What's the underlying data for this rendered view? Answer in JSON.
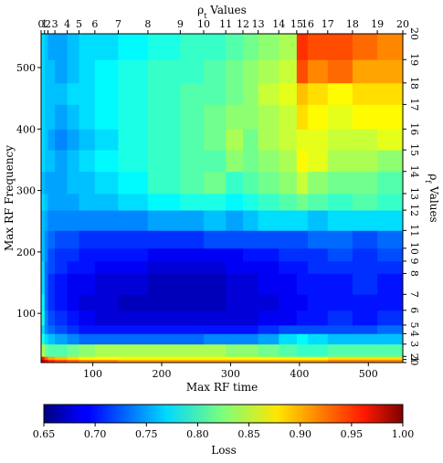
{
  "chart_data": {
    "type": "heatmap",
    "xlabel": "Max RF time",
    "ylabel": "Max RF Frequency",
    "top_label": "ρ_t Values",
    "right_label": "ρ_f Values",
    "colorbar_label": "Loss",
    "xlim": [
      25,
      550
    ],
    "ylim": [
      20,
      555
    ],
    "x_ticks": [
      100,
      200,
      300,
      400,
      500
    ],
    "y_ticks": [
      100,
      200,
      300,
      400,
      500
    ],
    "top_ticks": [
      0,
      1,
      2,
      3,
      4,
      5,
      6,
      7,
      8,
      9,
      10,
      11,
      12,
      13,
      14,
      15,
      16,
      17,
      18,
      19,
      20
    ],
    "top_tick_x": [
      25,
      30,
      35,
      45,
      63,
      80,
      103,
      137,
      180,
      227,
      261,
      293,
      318,
      340,
      370,
      396,
      412,
      441,
      477,
      513,
      550
    ],
    "right_ticks": [
      0,
      1,
      2,
      3,
      4,
      5,
      6,
      7,
      8,
      9,
      10,
      11,
      12,
      13,
      14,
      15,
      16,
      17,
      18,
      19,
      20
    ],
    "right_tick_y": [
      20,
      25,
      30,
      50,
      67,
      81,
      105,
      131,
      165,
      185,
      206,
      235,
      268,
      295,
      331,
      366,
      400,
      440,
      475,
      513,
      555
    ],
    "colorbar_range": [
      0.65,
      1.0
    ],
    "colorbar_ticks": [
      "0.65",
      "0.70",
      "0.75",
      "0.80",
      "0.85",
      "0.90",
      "0.95",
      "1.00"
    ],
    "x_edges": [
      25,
      30,
      35,
      45,
      63,
      80,
      103,
      137,
      180,
      227,
      261,
      293,
      318,
      340,
      370,
      396,
      412,
      441,
      477,
      513,
      550
    ],
    "y_edges": [
      20,
      25,
      30,
      50,
      67,
      81,
      105,
      131,
      165,
      185,
      206,
      235,
      268,
      295,
      331,
      366,
      400,
      440,
      475,
      513,
      555
    ],
    "values": [
      [
        0.98,
        0.96,
        0.94,
        0.93,
        0.92,
        0.91,
        0.91,
        0.9,
        0.9,
        0.9,
        0.9,
        0.9,
        0.9,
        0.9,
        0.9,
        0.9,
        0.9,
        0.91,
        0.91,
        0.91
      ],
      [
        0.95,
        0.92,
        0.9,
        0.89,
        0.88,
        0.87,
        0.87,
        0.87,
        0.87,
        0.87,
        0.87,
        0.87,
        0.87,
        0.87,
        0.87,
        0.87,
        0.87,
        0.88,
        0.88,
        0.88
      ],
      [
        0.84,
        0.82,
        0.81,
        0.81,
        0.82,
        0.83,
        0.84,
        0.84,
        0.84,
        0.84,
        0.84,
        0.83,
        0.83,
        0.82,
        0.81,
        0.8,
        0.8,
        0.81,
        0.81,
        0.81
      ],
      [
        0.79,
        0.77,
        0.76,
        0.75,
        0.74,
        0.73,
        0.73,
        0.73,
        0.73,
        0.73,
        0.74,
        0.74,
        0.74,
        0.75,
        0.77,
        0.78,
        0.77,
        0.76,
        0.76,
        0.76
      ],
      [
        0.77,
        0.74,
        0.73,
        0.72,
        0.71,
        0.7,
        0.7,
        0.7,
        0.7,
        0.7,
        0.7,
        0.7,
        0.7,
        0.71,
        0.72,
        0.72,
        0.72,
        0.72,
        0.72,
        0.73
      ],
      [
        0.79,
        0.74,
        0.72,
        0.71,
        0.7,
        0.69,
        0.68,
        0.68,
        0.68,
        0.68,
        0.68,
        0.68,
        0.68,
        0.69,
        0.69,
        0.7,
        0.7,
        0.71,
        0.7,
        0.71
      ],
      [
        0.78,
        0.73,
        0.71,
        0.7,
        0.69,
        0.68,
        0.68,
        0.67,
        0.67,
        0.67,
        0.67,
        0.68,
        0.68,
        0.68,
        0.69,
        0.69,
        0.7,
        0.7,
        0.7,
        0.7
      ],
      [
        0.77,
        0.73,
        0.71,
        0.7,
        0.69,
        0.69,
        0.68,
        0.68,
        0.67,
        0.67,
        0.67,
        0.68,
        0.68,
        0.69,
        0.69,
        0.7,
        0.7,
        0.7,
        0.71,
        0.7
      ],
      [
        0.77,
        0.73,
        0.72,
        0.71,
        0.7,
        0.7,
        0.69,
        0.69,
        0.68,
        0.68,
        0.68,
        0.69,
        0.69,
        0.69,
        0.7,
        0.7,
        0.71,
        0.71,
        0.71,
        0.71
      ],
      [
        0.76,
        0.74,
        0.72,
        0.71,
        0.71,
        0.7,
        0.7,
        0.7,
        0.69,
        0.69,
        0.69,
        0.69,
        0.7,
        0.7,
        0.71,
        0.71,
        0.71,
        0.72,
        0.71,
        0.72
      ],
      [
        0.76,
        0.74,
        0.73,
        0.72,
        0.72,
        0.71,
        0.71,
        0.71,
        0.71,
        0.71,
        0.72,
        0.72,
        0.72,
        0.72,
        0.72,
        0.72,
        0.73,
        0.73,
        0.72,
        0.73
      ],
      [
        0.76,
        0.75,
        0.74,
        0.74,
        0.74,
        0.74,
        0.74,
        0.74,
        0.75,
        0.75,
        0.76,
        0.75,
        0.76,
        0.77,
        0.77,
        0.77,
        0.76,
        0.77,
        0.77,
        0.77
      ],
      [
        0.77,
        0.76,
        0.75,
        0.75,
        0.75,
        0.76,
        0.76,
        0.77,
        0.78,
        0.79,
        0.79,
        0.78,
        0.79,
        0.8,
        0.81,
        0.82,
        0.81,
        0.8,
        0.81,
        0.8
      ],
      [
        0.76,
        0.75,
        0.75,
        0.75,
        0.76,
        0.76,
        0.77,
        0.78,
        0.8,
        0.81,
        0.82,
        0.8,
        0.81,
        0.82,
        0.83,
        0.85,
        0.83,
        0.82,
        0.82,
        0.81
      ],
      [
        0.77,
        0.76,
        0.76,
        0.75,
        0.76,
        0.77,
        0.78,
        0.79,
        0.8,
        0.81,
        0.81,
        0.83,
        0.82,
        0.83,
        0.84,
        0.87,
        0.86,
        0.84,
        0.84,
        0.83
      ],
      [
        0.77,
        0.76,
        0.75,
        0.74,
        0.75,
        0.76,
        0.77,
        0.79,
        0.8,
        0.81,
        0.82,
        0.84,
        0.82,
        0.84,
        0.85,
        0.86,
        0.86,
        0.85,
        0.85,
        0.86
      ],
      [
        0.77,
        0.76,
        0.76,
        0.75,
        0.76,
        0.77,
        0.78,
        0.79,
        0.8,
        0.81,
        0.82,
        0.83,
        0.83,
        0.84,
        0.85,
        0.88,
        0.87,
        0.86,
        0.87,
        0.87
      ],
      [
        0.77,
        0.76,
        0.76,
        0.76,
        0.77,
        0.77,
        0.78,
        0.79,
        0.8,
        0.81,
        0.81,
        0.82,
        0.83,
        0.85,
        0.86,
        0.89,
        0.88,
        0.87,
        0.88,
        0.88
      ],
      [
        0.77,
        0.76,
        0.76,
        0.75,
        0.76,
        0.77,
        0.78,
        0.79,
        0.8,
        0.8,
        0.81,
        0.82,
        0.83,
        0.84,
        0.85,
        0.93,
        0.91,
        0.92,
        0.9,
        0.9
      ],
      [
        0.77,
        0.76,
        0.75,
        0.75,
        0.76,
        0.77,
        0.77,
        0.78,
        0.79,
        0.8,
        0.8,
        0.81,
        0.82,
        0.83,
        0.84,
        0.94,
        0.93,
        0.93,
        0.92,
        0.91
      ]
    ]
  }
}
